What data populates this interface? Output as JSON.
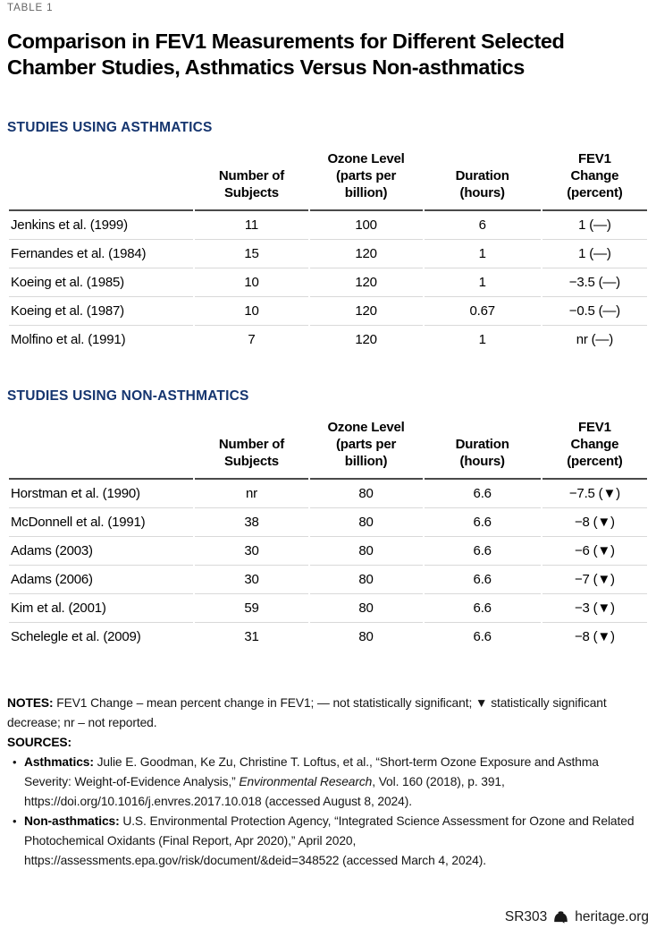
{
  "page": {
    "table_label": "TABLE 1",
    "title": "Comparison in FEV1 Measurements for Different Selected\nChamber Studies, Asthmatics Versus Non-asthmatics"
  },
  "columns": [
    "",
    "Number of\nSubjects",
    "Ozone Level\n(parts per\nbillion)",
    "Duration\n(hours)",
    "FEV1\nChange\n(percent)"
  ],
  "sections": [
    {
      "heading": "STUDIES USING ASTHMATICS",
      "rows": [
        [
          "Jenkins et al. (1999)",
          "11",
          "100",
          "6",
          "1 (—)"
        ],
        [
          "Fernandes et al. (1984)",
          "15",
          "120",
          "1",
          "1 (—)"
        ],
        [
          "Koeing et al. (1985)",
          "10",
          "120",
          "1",
          "−3.5 (—)"
        ],
        [
          "Koeing et al. (1987)",
          "10",
          "120",
          "0.67",
          "−0.5 (—)"
        ],
        [
          "Molfino et al. (1991)",
          "7",
          "120",
          "1",
          "nr (—)"
        ]
      ]
    },
    {
      "heading": "STUDIES USING NON-ASTHMATICS",
      "rows": [
        [
          "Horstman et al. (1990)",
          "nr",
          "80",
          "6.6",
          "−7.5 (▼)"
        ],
        [
          "McDonnell et al. (1991)",
          "38",
          "80",
          "6.6",
          "−8 (▼)"
        ],
        [
          "Adams (2003)",
          "30",
          "80",
          "6.6",
          "−6 (▼)"
        ],
        [
          "Adams (2006)",
          "30",
          "80",
          "6.6",
          "−7 (▼)"
        ],
        [
          "Kim et al. (2001)",
          "59",
          "80",
          "6.6",
          "−3 (▼)"
        ],
        [
          "Schelegle et al. (2009)",
          "31",
          "80",
          "6.6",
          "−8 (▼)"
        ]
      ]
    }
  ],
  "notes": {
    "label": "NOTES:",
    "text": " FEV1 Change – mean percent change in FEV1; — not statistically significant; ▼ statistically significant decrease; nr – not reported."
  },
  "sources": {
    "label": "SOURCES:",
    "items": [
      {
        "label": "Asthmatics:",
        "text_before_italic": " Julie E. Goodman, Ke Zu, Christine T. Loftus, et al., “Short-term Ozone Exposure and Asthma Severity: Weight-of-Evidence Analysis,” ",
        "italic": "Environmental Research",
        "text_after_italic": ", Vol. 160 (2018), p. 391, https://doi.org/10.1016/j.envres.2017.10.018 (accessed August 8, 2024)."
      },
      {
        "label": "Non-asthmatics:",
        "text_before_italic": " U.S. Environmental Protection Agency, “Integrated Science Assessment for Ozone and Related Photochemical Oxidants (Final Report, Apr 2020),” April 2020, https://assessments.epa.gov/risk/document/&deid=348522 (accessed March 4, 2024).",
        "italic": "",
        "text_after_italic": ""
      }
    ]
  },
  "footer": {
    "report_id": "SR303",
    "site": "heritage.org",
    "logo": "heritage-liberty-bell"
  },
  "colors": {
    "accent_blue": "#15356f",
    "label_gray": "#646464",
    "header_rule": "#4a4a4a",
    "row_rule": "#d9d9d9"
  }
}
